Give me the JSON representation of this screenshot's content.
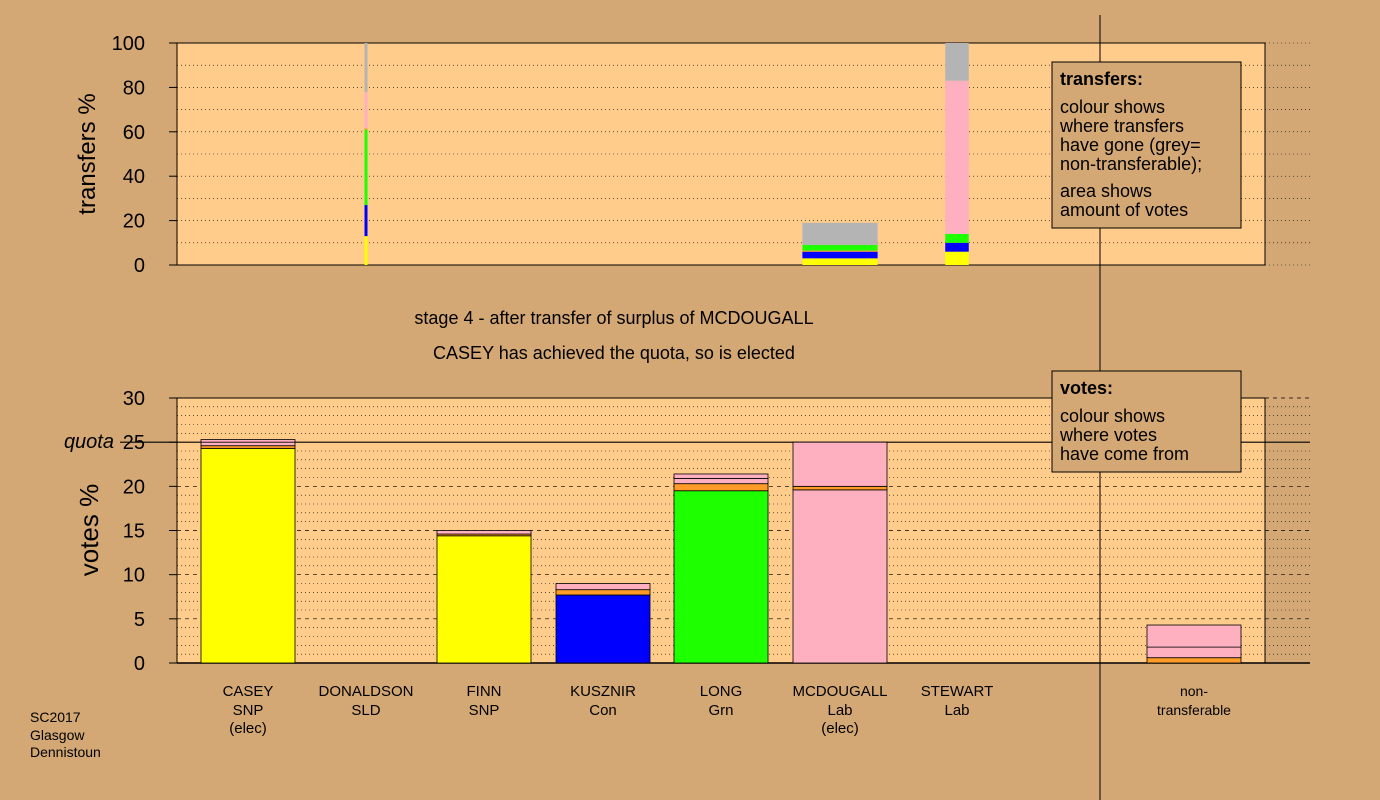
{
  "colors": {
    "page_bg": "#d4a874",
    "plot_bg": "#ffcc8c",
    "snp": "#ffff00",
    "con": "#0000ff",
    "grn": "#1eff00",
    "lab": "#ffb0c0",
    "lab_dark": "#f0a0b4",
    "sld": "#ff9c28",
    "nontransferable": "#b4b4b4"
  },
  "footer": {
    "line1": "SC2017",
    "line2": "Glasgow",
    "line3": "Dennistoun"
  },
  "chart_data": [
    {
      "type": "bar",
      "name": "transfers",
      "ylabel": "transfers %",
      "ylim": [
        0,
        100
      ],
      "yticks": [
        "0",
        "20",
        "40",
        "60",
        "80",
        "100"
      ],
      "legend": {
        "placement": "top-right",
        "title": "transfers:",
        "lines": [
          "colour shows",
          "where transfers",
          "have gone (grey=",
          "non-transferable);"
        ],
        "lines2": [
          "area shows",
          "amount of votes"
        ]
      },
      "bars": [
        {
          "candidate": "DONALDSON",
          "width_share": 0.02,
          "segments": [
            {
              "party": "snp",
              "from": 0,
              "to": 13
            },
            {
              "party": "con",
              "from": 13,
              "to": 27
            },
            {
              "party": "grn",
              "from": 27,
              "to": 61
            },
            {
              "party": "sld",
              "from": 61,
              "to": 61.5
            },
            {
              "party": "lab",
              "from": 61.5,
              "to": 78
            },
            {
              "party": "nontransferable",
              "from": 78,
              "to": 100
            }
          ]
        },
        {
          "candidate": "MCDOUGALL",
          "width_share": 0.8,
          "segments": [
            {
              "party": "snp",
              "from": 0,
              "to": 3
            },
            {
              "party": "con",
              "from": 3,
              "to": 6
            },
            {
              "party": "sld",
              "from": 6,
              "to": 6.5
            },
            {
              "party": "grn",
              "from": 6.5,
              "to": 9
            },
            {
              "party": "nontransferable",
              "from": 9,
              "to": 19
            }
          ]
        },
        {
          "candidate": "STEWART",
          "width_share": 0.25,
          "segments": [
            {
              "party": "snp",
              "from": 0,
              "to": 6
            },
            {
              "party": "con",
              "from": 6,
              "to": 10
            },
            {
              "party": "grn",
              "from": 10,
              "to": 14
            },
            {
              "party": "lab",
              "from": 14,
              "to": 83
            },
            {
              "party": "nontransferable",
              "from": 83,
              "to": 100
            }
          ]
        }
      ]
    },
    {
      "type": "bar",
      "name": "votes",
      "title": "stage 4 - after transfer of surplus of MCDOUGALL",
      "subtitle": "CASEY has achieved the quota, so is elected",
      "ylabel": "votes %",
      "ylim": [
        0,
        30
      ],
      "yticks": [
        "0",
        "5",
        "10",
        "15",
        "20",
        "25",
        "30"
      ],
      "quota": 25,
      "quota_label": "quota",
      "legend": {
        "placement": "top-right",
        "title": "votes:",
        "lines": [
          "colour shows",
          "where votes",
          "have come from"
        ]
      },
      "categories": [
        {
          "name": "CASEY",
          "party": "SNP",
          "note": "(elec)"
        },
        {
          "name": "DONALDSON",
          "party": "SLD",
          "note": ""
        },
        {
          "name": "FINN",
          "party": "SNP",
          "note": ""
        },
        {
          "name": "KUSZNIR",
          "party": "Con",
          "note": ""
        },
        {
          "name": "LONG",
          "party": "Grn",
          "note": ""
        },
        {
          "name": "MCDOUGALL",
          "party": "Lab",
          "note": "(elec)"
        },
        {
          "name": "STEWART",
          "party": "Lab",
          "note": ""
        },
        {
          "name": "non-",
          "party": "transferable",
          "note": ""
        }
      ],
      "stacks": [
        [
          {
            "party": "snp",
            "from": 0,
            "to": 24.3
          },
          {
            "party": "sld",
            "from": 24.3,
            "to": 24.6
          },
          {
            "party": "lab",
            "from": 24.6,
            "to": 25.0
          },
          {
            "party": "lab",
            "from": 25.0,
            "to": 25.3
          }
        ],
        [],
        [
          {
            "party": "snp",
            "from": 0,
            "to": 14.4
          },
          {
            "party": "sld",
            "from": 14.4,
            "to": 14.6
          },
          {
            "party": "lab",
            "from": 14.6,
            "to": 15.0
          }
        ],
        [
          {
            "party": "con",
            "from": 0,
            "to": 7.7
          },
          {
            "party": "sld",
            "from": 7.7,
            "to": 8.3
          },
          {
            "party": "lab",
            "from": 8.3,
            "to": 9.0
          }
        ],
        [
          {
            "party": "grn",
            "from": 0,
            "to": 19.5
          },
          {
            "party": "sld",
            "from": 19.5,
            "to": 20.3
          },
          {
            "party": "lab",
            "from": 20.3,
            "to": 20.9
          },
          {
            "party": "lab",
            "from": 20.9,
            "to": 21.4
          }
        ],
        [
          {
            "party": "lab",
            "from": 0,
            "to": 19.6
          },
          {
            "party": "sld",
            "from": 19.6,
            "to": 20.0
          },
          {
            "party": "lab",
            "from": 20.0,
            "to": 25.0
          }
        ],
        [],
        [
          {
            "party": "sld",
            "from": 0,
            "to": 0.6
          },
          {
            "party": "lab",
            "from": 0.6,
            "to": 1.8
          },
          {
            "party": "lab",
            "from": 1.8,
            "to": 4.3
          }
        ]
      ]
    }
  ]
}
